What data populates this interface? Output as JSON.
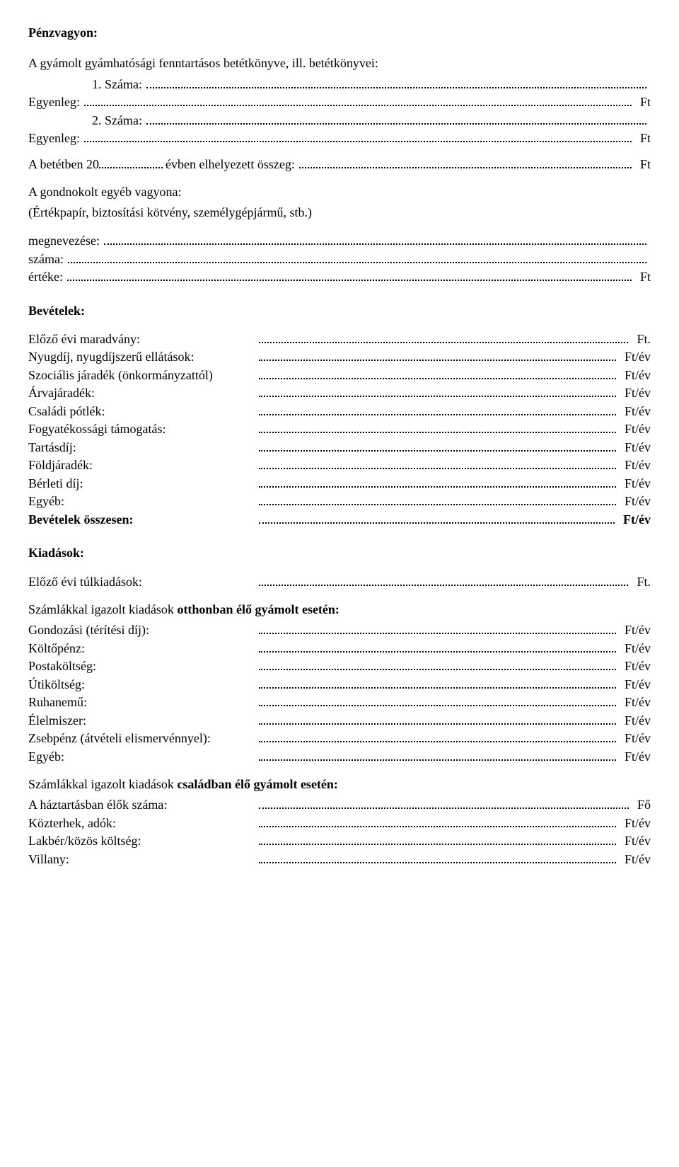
{
  "title": "Pénzvagyon:",
  "intro": "A gyámolt gyámhatósági fenntartásos betétkönyve, ill. betétkönyvei:",
  "book1_num_label": "1. Száma:",
  "book_balance": "Egyenleg:",
  "book2_num_label": "2. Száma:",
  "ft": "Ft",
  "deposit_line_a": "A betétben 20",
  "deposit_line_b": "évben elhelyezett összeg:",
  "other_assets_heading": "A gondnokolt egyéb vagyona:",
  "other_assets_sub": "(Értékpapír, biztosítási kötvény, személygépjármű, stb.)",
  "megnev": "megnevezése:",
  "szama": "száma:",
  "erteke": "értéke:",
  "bevetel_heading": "Bevételek:",
  "ft_unit": "Ft.",
  "ftev": "Ft/év",
  "rows_bevetel": {
    "elozo": "Előző évi maradvány:",
    "nyugdij": "Nyugdíj, nyugdíjszerű ellátások:",
    "szocialis": "Szociális járadék (önkormányzattól)",
    "arva": "Árvajáradék:",
    "csaladi": "Családi pótlék:",
    "fogyatek": "Fogyatékossági támogatás:",
    "tartas": "Tartásdíj:",
    "fold": "Földjáradék:",
    "berleti": "Bérleti díj:",
    "egyeb": "Egyéb:",
    "osszesen": "Bevételek összesen:"
  },
  "kiadasok_heading": "Kiadások:",
  "elozo_tulkiadas": "Előző évi túlkiadások:",
  "otthon_heading_a": "Számlákkal igazolt kiadások ",
  "otthon_heading_b": "otthonban élő gyámolt esetén:",
  "rows_otthon": {
    "gondozasi": "Gondozási (térítési díj):",
    "kolto": "Költőpénz:",
    "posta": "Postaköltség:",
    "uti": "Útiköltség:",
    "ruha": "Ruhanemű:",
    "elelmiszer": "Élelmiszer:",
    "zseb": "Zsebpénz (átvételi elismervénnyel):",
    "egyeb2": "Egyéb:"
  },
  "csalad_heading_a": "Számlákkal igazolt kiadások ",
  "csalad_heading_b": "családban élő gyámolt esetén:",
  "rows_csalad": {
    "haztartas": "A háztartásban élők száma:",
    "kozterhek": "Közterhek, adók:",
    "lakber": "Lakbér/közös költség:",
    "villany": "Villany:"
  },
  "fo": "Fő"
}
